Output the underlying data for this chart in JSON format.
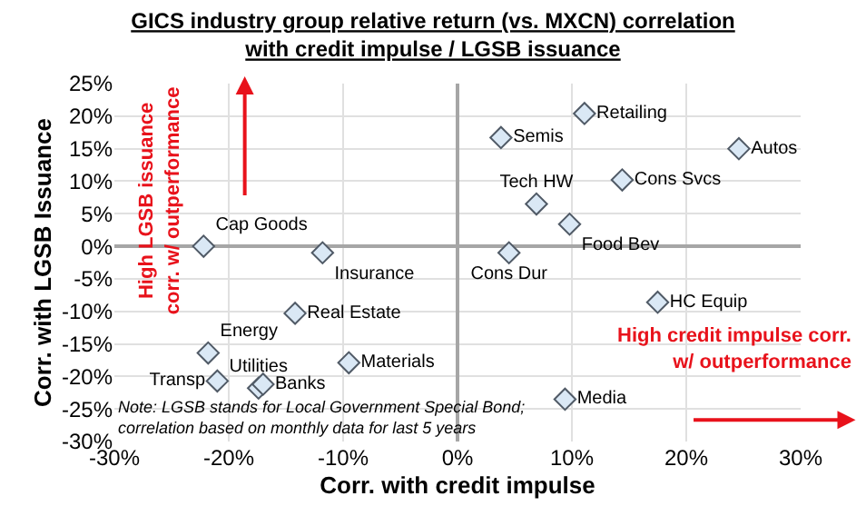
{
  "chart_data": {
    "type": "scatter",
    "title": "GICS industry group relative return (vs. MXCN) correlation with credit impulse / LGSB issuance",
    "xlabel": "Corr. with credit impulse",
    "ylabel": "Corr. with LGSB Issuance",
    "x": [
      -22.2,
      -11.8,
      -14.2,
      -21.8,
      -21,
      -17.4,
      -17,
      -9.5,
      3.8,
      11.1,
      24.6,
      14.4,
      6.9,
      9.8,
      4.5,
      17.5,
      9.4
    ],
    "series": [
      {
        "color": "#dae8f5",
        "values": [
          0,
          -1,
          -10.3,
          -16.4,
          -20.7,
          -21.8,
          -21.2,
          -17.9,
          16.7,
          20.4,
          15,
          10.2,
          6.5,
          3.4,
          -1,
          -8.6,
          -23.5
        ],
        "value_labels": [
          "Cap Goods",
          "Insurance",
          "Real Estate",
          "Energy",
          "Transp",
          "Utilities",
          "Banks",
          "Materials",
          "Semis",
          "Retailing",
          "Autos",
          "Cons Svcs",
          "Tech HW",
          "Food Bev",
          "Cons Dur",
          "HC Equip",
          "Media"
        ]
      }
    ],
    "marker": "diamond",
    "grid": true,
    "legend": false,
    "xlim": [
      -30,
      30
    ],
    "ylim": [
      -30,
      25
    ],
    "xticks": [
      {
        "value": -30,
        "label": "-30%"
      },
      {
        "value": -20,
        "label": "-20%"
      },
      {
        "value": -10,
        "label": "-10%"
      },
      {
        "value": 0,
        "label": "0%"
      },
      {
        "value": 10,
        "label": "10%"
      },
      {
        "value": 20,
        "label": "20%"
      },
      {
        "value": 30,
        "label": "30%"
      }
    ],
    "yticks": [
      {
        "value": -30,
        "label": "-30%"
      },
      {
        "value": -25,
        "label": "-25%"
      },
      {
        "value": -20,
        "label": "-20%"
      },
      {
        "value": -15,
        "label": "-15%"
      },
      {
        "value": -10,
        "label": "-10%"
      },
      {
        "value": -5,
        "label": "-5%"
      },
      {
        "value": 0,
        "label": "0%"
      },
      {
        "value": 5,
        "label": "5%"
      },
      {
        "value": 10,
        "label": "10%"
      },
      {
        "value": 15,
        "label": "15%"
      },
      {
        "value": 20,
        "label": "20%"
      },
      {
        "value": 25,
        "label": "25%"
      }
    ],
    "annotations": [
      "High LGSB issuance corr. w/ outperformance",
      "High credit impulse corr. w/ outperformance",
      "Note: LGSB stands for Local Government Special Bond; correlation based on monthly data for last 5 years"
    ]
  }
}
